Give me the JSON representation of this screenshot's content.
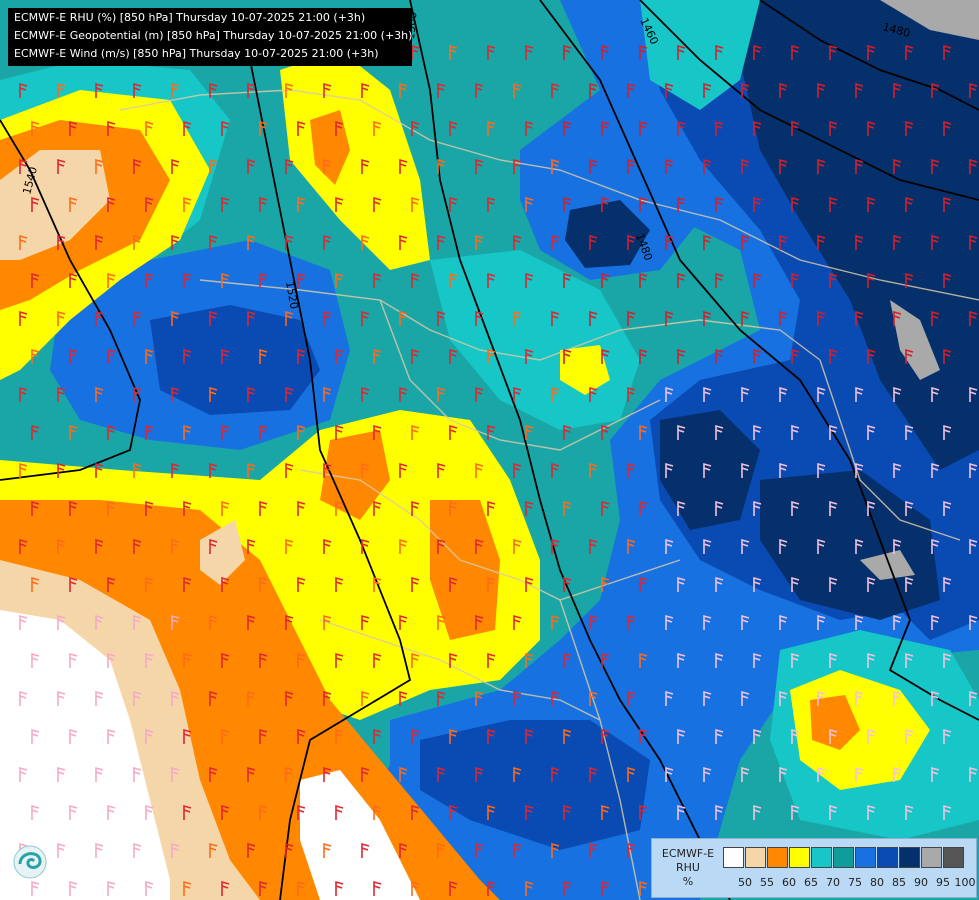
{
  "header": {
    "line1": "ECMWF-E RHU (%) [850 hPa] Thursday 10-07-2025 21:00 (+3h)",
    "line2": "ECMWF-E Geopotential (m) [850 hPa] Thursday 10-07-2025 21:00 (+3h)",
    "line3": "ECMWF-E Wind (m/s) [850 hPa] Thursday 10-07-2025 21:00 (+3h)"
  },
  "contours": {
    "c1540": "1540",
    "c1520": "1520",
    "c1500": "1500",
    "c1480": "1480",
    "c1460": "1460",
    "c1480b": "1480"
  },
  "legend": {
    "title1": "ECMWF-E",
    "title2": "RHU",
    "title3": "%",
    "colors": [
      "#ffffff",
      "#f5d6a8",
      "#ff8800",
      "#ffff00",
      "#17c6c6",
      "#119c9c",
      "#1771e0",
      "#0a4ab3",
      "#06306c",
      "#a9a9a9",
      "#555555"
    ],
    "ticks": [
      "50",
      "55",
      "60",
      "65",
      "70",
      "75",
      "80",
      "85",
      "90",
      "95",
      "100"
    ]
  },
  "colors": {
    "white": "#ffffff",
    "tan": "#f5d6a8",
    "orange": "#ff8800",
    "yellow": "#ffff00",
    "cyan": "#17c6c6",
    "teal": "#1aa6a6",
    "blue": "#1771e0",
    "darkblue": "#0a4ab3",
    "navy": "#06306c",
    "grey": "#a9a9a9"
  }
}
